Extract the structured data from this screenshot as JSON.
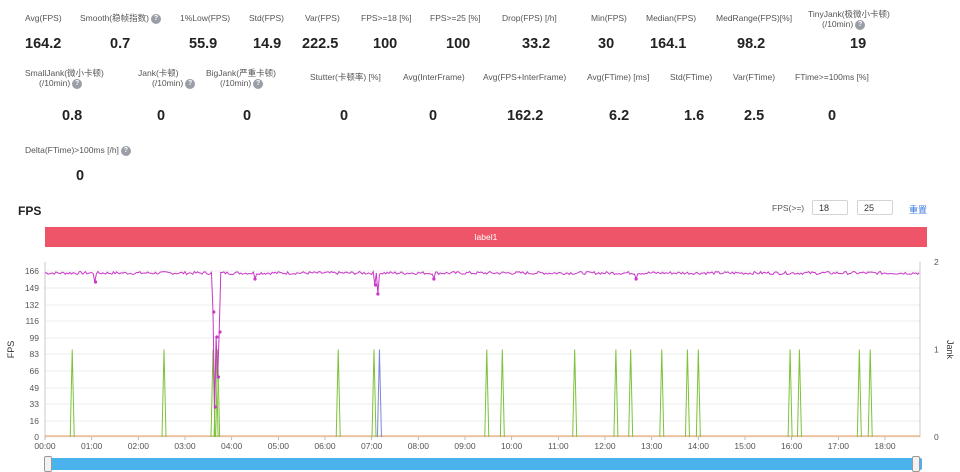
{
  "metrics_row1": [
    {
      "label": "Avg(FPS)",
      "value": "164.2",
      "help": false
    },
    {
      "label": "Smooth(稳帧指数)",
      "value": "0.7",
      "help": true
    },
    {
      "label": "1%Low(FPS)",
      "value": "55.9",
      "help": false
    },
    {
      "label": "Std(FPS)",
      "value": "14.9",
      "help": false
    },
    {
      "label": "Var(FPS)",
      "value": "222.5",
      "help": false
    },
    {
      "label": "FPS>=18 [%]",
      "value": "100",
      "help": false
    },
    {
      "label": "FPS>=25 [%]",
      "value": "100",
      "help": false
    },
    {
      "label": "Drop(FPS) [/h]",
      "value": "33.2",
      "help": false
    },
    {
      "label": "Min(FPS)",
      "value": "30",
      "help": false
    },
    {
      "label": "Median(FPS)",
      "value": "164.1",
      "help": false
    },
    {
      "label": "MedRange(FPS)[%]",
      "value": "98.2",
      "help": false
    },
    {
      "label": "TinyJank(极微小卡顿)",
      "label2": "(/10min)",
      "value": "19",
      "help": true
    }
  ],
  "metrics_row2": [
    {
      "label": "SmallJank(微小卡顿)",
      "label2": "(/10min)",
      "value": "0.8",
      "help": true
    },
    {
      "label": "Jank(卡顿)",
      "label2": "(/10min)",
      "value": "0",
      "help": true
    },
    {
      "label": "BigJank(严重卡顿)",
      "label2": "(/10min)",
      "value": "0",
      "help": true
    },
    {
      "label": "Stutter(卡顿率) [%]",
      "value": "0",
      "help": false
    },
    {
      "label": "Avg(InterFrame)",
      "value": "0",
      "help": false
    },
    {
      "label": "Avg(FPS+InterFrame)",
      "value": "162.2",
      "help": false
    },
    {
      "label": "Avg(FTime) [ms]",
      "value": "6.2",
      "help": false
    },
    {
      "label": "Std(FTime)",
      "value": "1.6",
      "help": false
    },
    {
      "label": "Var(FTime)",
      "value": "2.5",
      "help": false
    },
    {
      "label": "FTime>=100ms [%]",
      "value": "0",
      "help": false
    }
  ],
  "metrics_row3": [
    {
      "label": "Delta(FTime)>100ms [/h]",
      "value": "0",
      "help": true
    }
  ],
  "section_title": "FPS",
  "fps_threshold": {
    "label": "FPS(>=)",
    "value1": "18",
    "value2": "25",
    "reset_label": "重置"
  },
  "label_bar": {
    "text": "label1",
    "color": "#ee5568"
  },
  "slider": {
    "start": 0,
    "end": 1
  },
  "colors": {
    "fps": "#c837c8",
    "jank": "#7ec23a",
    "bigjank": "#7a86d8",
    "baseline": "#e89a5a",
    "label": "#ee5568",
    "slider": "#4ab3ee"
  },
  "chart_data": {
    "type": "line",
    "ylabel": "FPS",
    "y2label": "Jank",
    "yticks": [
      0,
      16,
      33,
      49,
      66,
      83,
      99,
      116,
      132,
      149,
      166
    ],
    "ylim": [
      0,
      175
    ],
    "y2ticks": [
      0,
      1,
      2
    ],
    "y2lim": [
      0,
      2
    ],
    "xlabels": [
      "00:00",
      "01:00",
      "02:00",
      "03:00",
      "04:00",
      "05:00",
      "06:00",
      "07:00",
      "08:00",
      "09:00",
      "10:00",
      "11:00",
      "12:00",
      "13:00",
      "14:00",
      "15:00",
      "16:00",
      "17:00",
      "18:00"
    ],
    "xlim_sec": [
      0,
      1125
    ],
    "grid": true,
    "fps_baseline": 164,
    "fps_dips": [
      {
        "t": 217,
        "v": 125
      },
      {
        "t": 219,
        "v": 30
      },
      {
        "t": 221,
        "v": 100
      },
      {
        "t": 223,
        "v": 60
      },
      {
        "t": 225,
        "v": 105
      },
      {
        "t": 65,
        "v": 155
      },
      {
        "t": 270,
        "v": 158
      },
      {
        "t": 425,
        "v": 152
      },
      {
        "t": 428,
        "v": 143
      },
      {
        "t": 500,
        "v": 158
      },
      {
        "t": 760,
        "v": 158
      }
    ],
    "series": [
      {
        "name": "TinyJank",
        "spikes": [
          35,
          153,
          216,
          220,
          222,
          377,
          423,
          568,
          588,
          681,
          734,
          753,
          793,
          826,
          840,
          958,
          970,
          1047,
          1061
        ]
      },
      {
        "name": "SmallJank",
        "spikes": [
          430
        ]
      }
    ]
  }
}
